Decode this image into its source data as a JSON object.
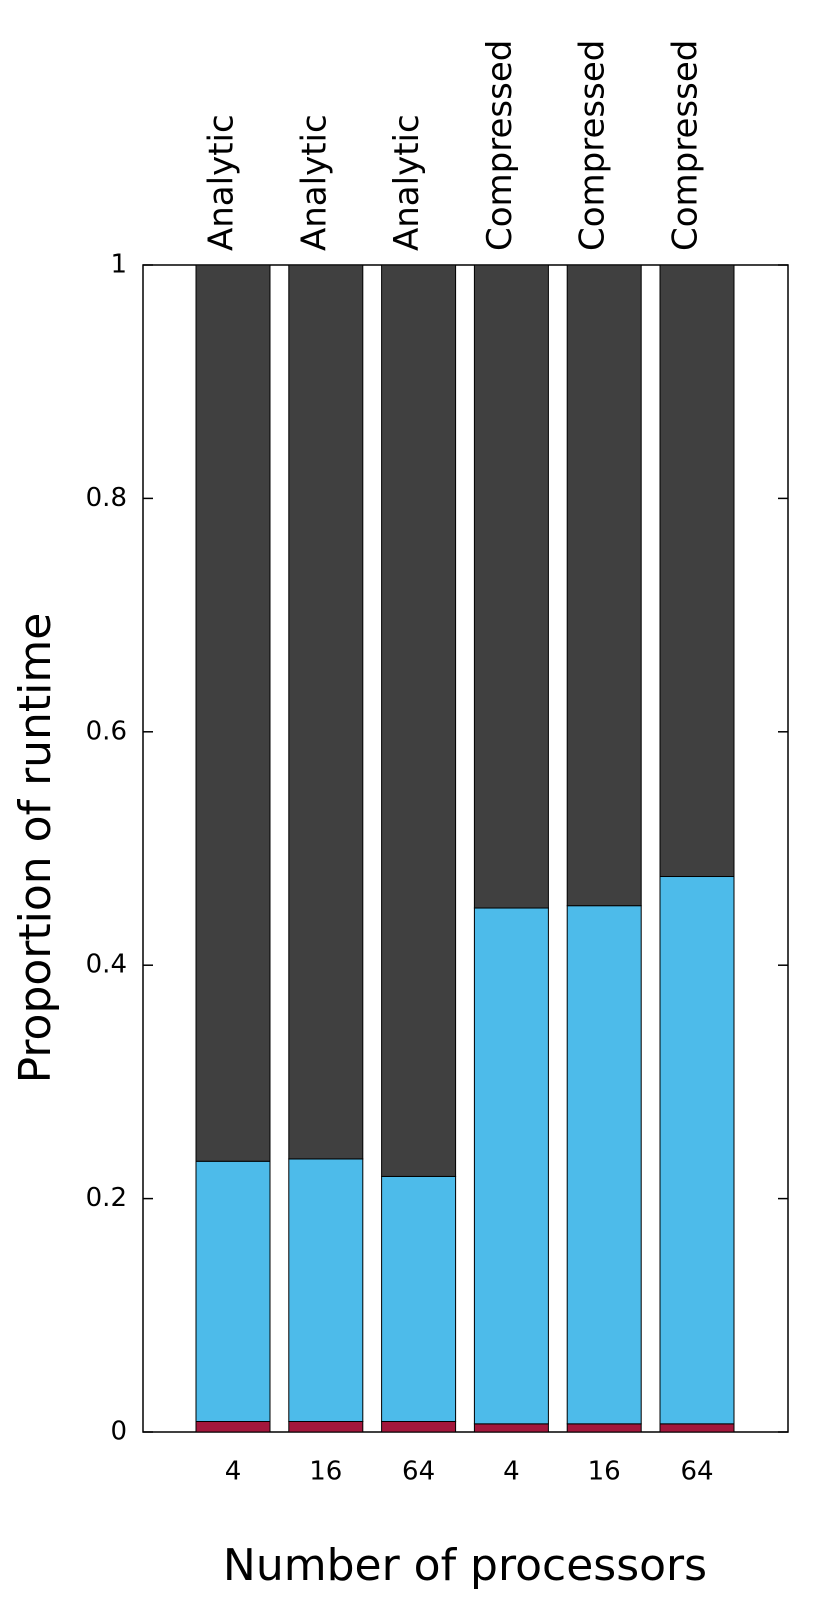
{
  "chart_data": {
    "type": "stacked_bar",
    "x_label": "Number of processors",
    "y_label": "Proportion of runtime",
    "categories": [
      "4",
      "16",
      "64",
      "4",
      "16",
      "64"
    ],
    "group_labels": [
      "Analytic",
      "Analytic",
      "Analytic",
      "Compressed",
      "Compressed",
      "Compressed"
    ],
    "series": [
      {
        "color": "#a3173c",
        "values": [
          0.009,
          0.009,
          0.009,
          0.007,
          0.007,
          0.007
        ]
      },
      {
        "color": "#4dbbea",
        "values": [
          0.223,
          0.225,
          0.21,
          0.442,
          0.444,
          0.469
        ]
      },
      {
        "color": "#404040",
        "values": [
          0.768,
          0.766,
          0.781,
          0.551,
          0.549,
          0.524
        ]
      }
    ],
    "ylim": [
      0,
      1
    ],
    "yticks": [
      0,
      0.2,
      0.4,
      0.6,
      0.8,
      1
    ]
  }
}
